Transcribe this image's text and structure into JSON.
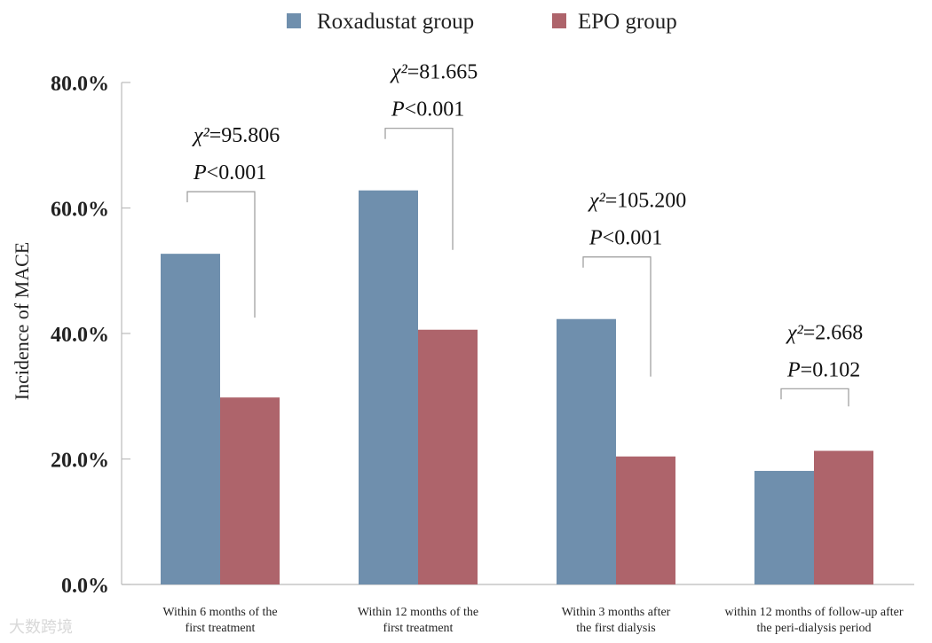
{
  "chart_data": {
    "type": "bar",
    "title": "",
    "xlabel": "",
    "ylabel": "Incidence of MACE",
    "ylim": [
      0,
      80
    ],
    "yticks": [
      "0.0%",
      "20.0%",
      "40.0%",
      "60.0%",
      "80.0%"
    ],
    "categories": [
      [
        "Within 6 months of the",
        "first treatment"
      ],
      [
        "Within 12 months of the",
        "first treatment"
      ],
      [
        "Within 3 months after",
        "the first dialysis"
      ],
      [
        "within 12 months of follow-up after",
        "the peri-dialysis period"
      ]
    ],
    "series": [
      {
        "name": "Roxadustat  group",
        "color": "#6f8fad",
        "values": [
          52.7,
          62.8,
          42.3,
          18.1
        ]
      },
      {
        "name": "EPO group",
        "color": "#ae646b",
        "values": [
          29.8,
          40.6,
          20.4,
          21.3
        ]
      }
    ],
    "annotations": [
      {
        "chi": "=95.806",
        "p": "<0.001"
      },
      {
        "chi": "=81.665",
        "p": "<0.001"
      },
      {
        "chi": "=105.200",
        "p": "<0.001"
      },
      {
        "chi": "=2.668",
        "p": "=0.102"
      }
    ],
    "chi_symbol": "χ²",
    "p_symbol": "P",
    "legend_position": "top"
  },
  "watermark": "大数跨境"
}
